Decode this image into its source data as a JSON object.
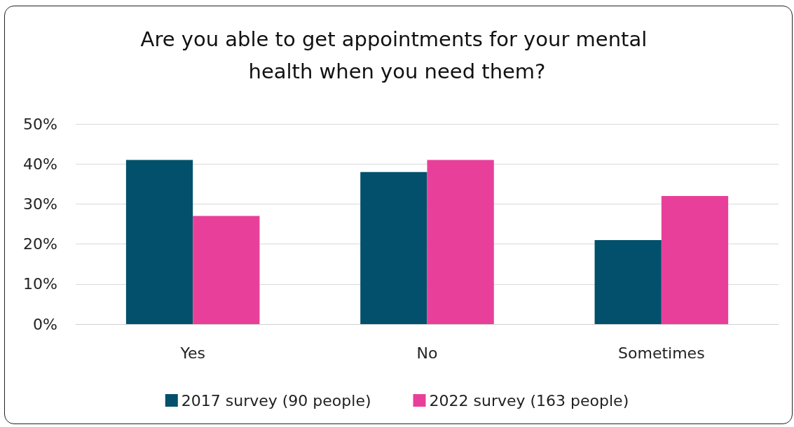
{
  "chart_data": {
    "type": "bar",
    "title": "Are you able to get appointments for your mental health when you need them?",
    "categories": [
      "Yes",
      "No",
      "Sometimes"
    ],
    "series": [
      {
        "name": "2017 survey (90 people)",
        "color": "#02506b",
        "values": [
          41,
          38,
          21
        ]
      },
      {
        "name": "2022 survey (163 people)",
        "color": "#e8409a",
        "values": [
          27,
          41,
          32
        ]
      }
    ],
    "ylim": [
      0,
      50
    ],
    "yticks": [
      {
        "value": 0,
        "label": "0%"
      },
      {
        "value": 10,
        "label": "10%"
      },
      {
        "value": 20,
        "label": "20%"
      },
      {
        "value": 30,
        "label": "30%"
      },
      {
        "value": 40,
        "label": "40%"
      },
      {
        "value": 50,
        "label": "50%"
      }
    ],
    "grid": "y",
    "legend": "bottom"
  }
}
